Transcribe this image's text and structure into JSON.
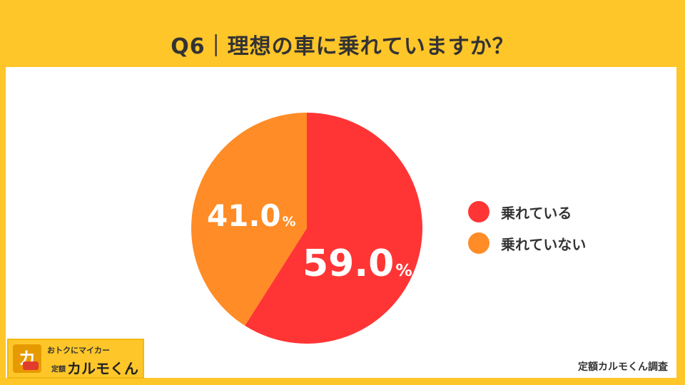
{
  "title": "Q6｜理想の車に乗れていますか？",
  "source": "定額カルモくん調査",
  "logo": {
    "tagline": "おトクにマイカー",
    "brand_small": "定額",
    "brand": "カルモくん",
    "icon_char": "カ"
  },
  "chart_data": {
    "type": "pie",
    "title": "Q6｜理想の車に乗れていますか？",
    "unit": "%",
    "legend_position": "right",
    "slices": [
      {
        "label": "乗れている",
        "value": 59.0,
        "display": "59.0",
        "color": "#FF3535"
      },
      {
        "label": "乗れていない",
        "value": 41.0,
        "display": "41.0",
        "color": "#FF8C26"
      }
    ]
  }
}
